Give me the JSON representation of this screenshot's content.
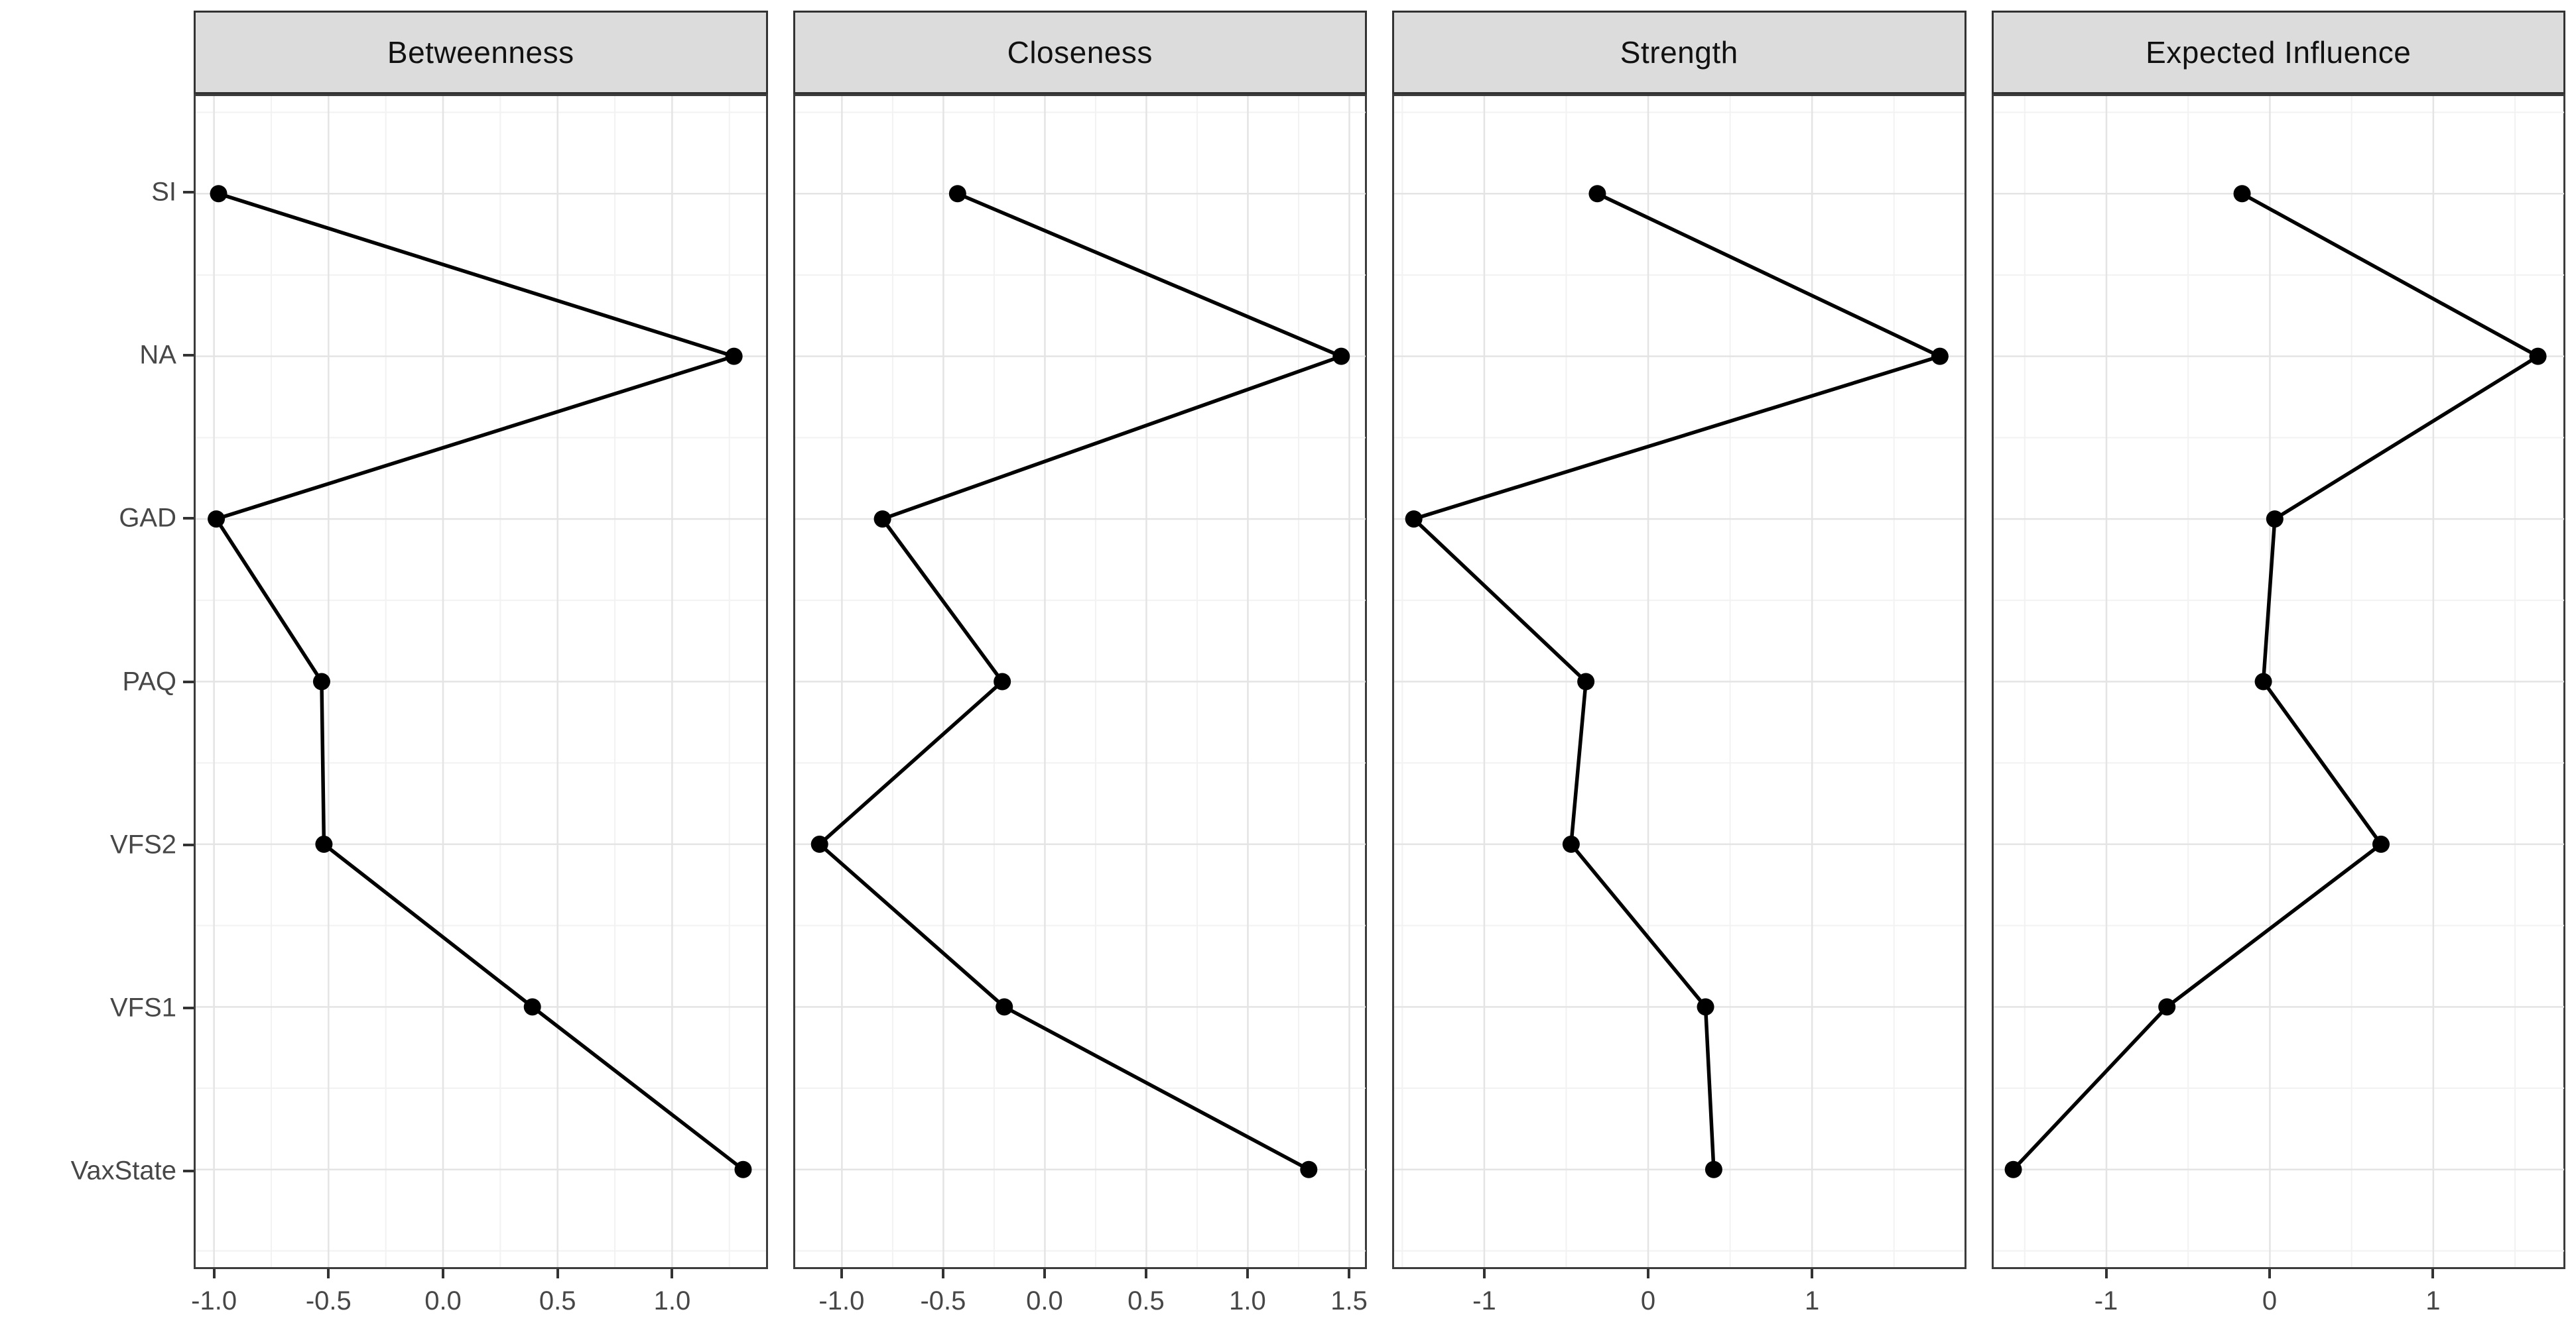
{
  "chart_data": {
    "type": "line",
    "title": "",
    "orientation": "horizontal points connected by line, one facet per centrality index",
    "facet_scales": "free_x",
    "grid": "on",
    "legend": "none",
    "categories_top_to_bottom": [
      "SI",
      "NA",
      "GAD",
      "PAQ",
      "VFS2",
      "VFS1",
      "VaxState"
    ],
    "facets": [
      {
        "label": "Betweenness",
        "xlim": [
          -1.08,
          1.41
        ],
        "ticks": [
          -1.0,
          -0.5,
          0.0,
          0.5,
          1.0
        ],
        "tick_labels": [
          "-1.0",
          "-0.5",
          "0.0",
          "0.5",
          "1.0"
        ],
        "values": [
          -0.98,
          1.27,
          -0.99,
          -0.53,
          -0.52,
          0.39,
          1.31
        ]
      },
      {
        "label": "Closeness",
        "xlim": [
          -1.23,
          1.58
        ],
        "ticks": [
          -1.0,
          -0.5,
          0.0,
          0.5,
          1.0,
          1.5
        ],
        "tick_labels": [
          "-1.0",
          "-0.5",
          "0.0",
          "0.5",
          "1.0",
          "1.5"
        ],
        "values": [
          -0.43,
          1.46,
          -0.8,
          -0.21,
          -1.11,
          -0.2,
          1.3
        ]
      },
      {
        "label": "Strength",
        "xlim": [
          -1.55,
          1.93
        ],
        "ticks": [
          -1,
          0,
          1
        ],
        "tick_labels": [
          "-1",
          "0",
          "1"
        ],
        "values": [
          -0.31,
          1.78,
          -1.43,
          -0.38,
          -0.47,
          0.35,
          0.4
        ]
      },
      {
        "label": "Expected Influence",
        "xlim": [
          -1.69,
          1.8
        ],
        "ticks": [
          -1,
          0,
          1
        ],
        "tick_labels": [
          "-1",
          "0",
          "1"
        ],
        "values": [
          -0.17,
          1.64,
          0.03,
          -0.04,
          0.68,
          -0.63,
          -1.57
        ]
      }
    ],
    "style": {
      "strip_fill": "#dcdcdc",
      "strip_border": "#333333",
      "strip_text_color": "#111111",
      "panel_border": "#3c3c3c",
      "panel_fill": "#ffffff",
      "grid_major": "#e4e4e4",
      "grid_minor": "#f2f2f2",
      "line_color": "#000000",
      "point_color": "#000000",
      "axis_text_color": "#474747",
      "tick_mark_color": "#333333",
      "background": "#ffffff"
    }
  }
}
